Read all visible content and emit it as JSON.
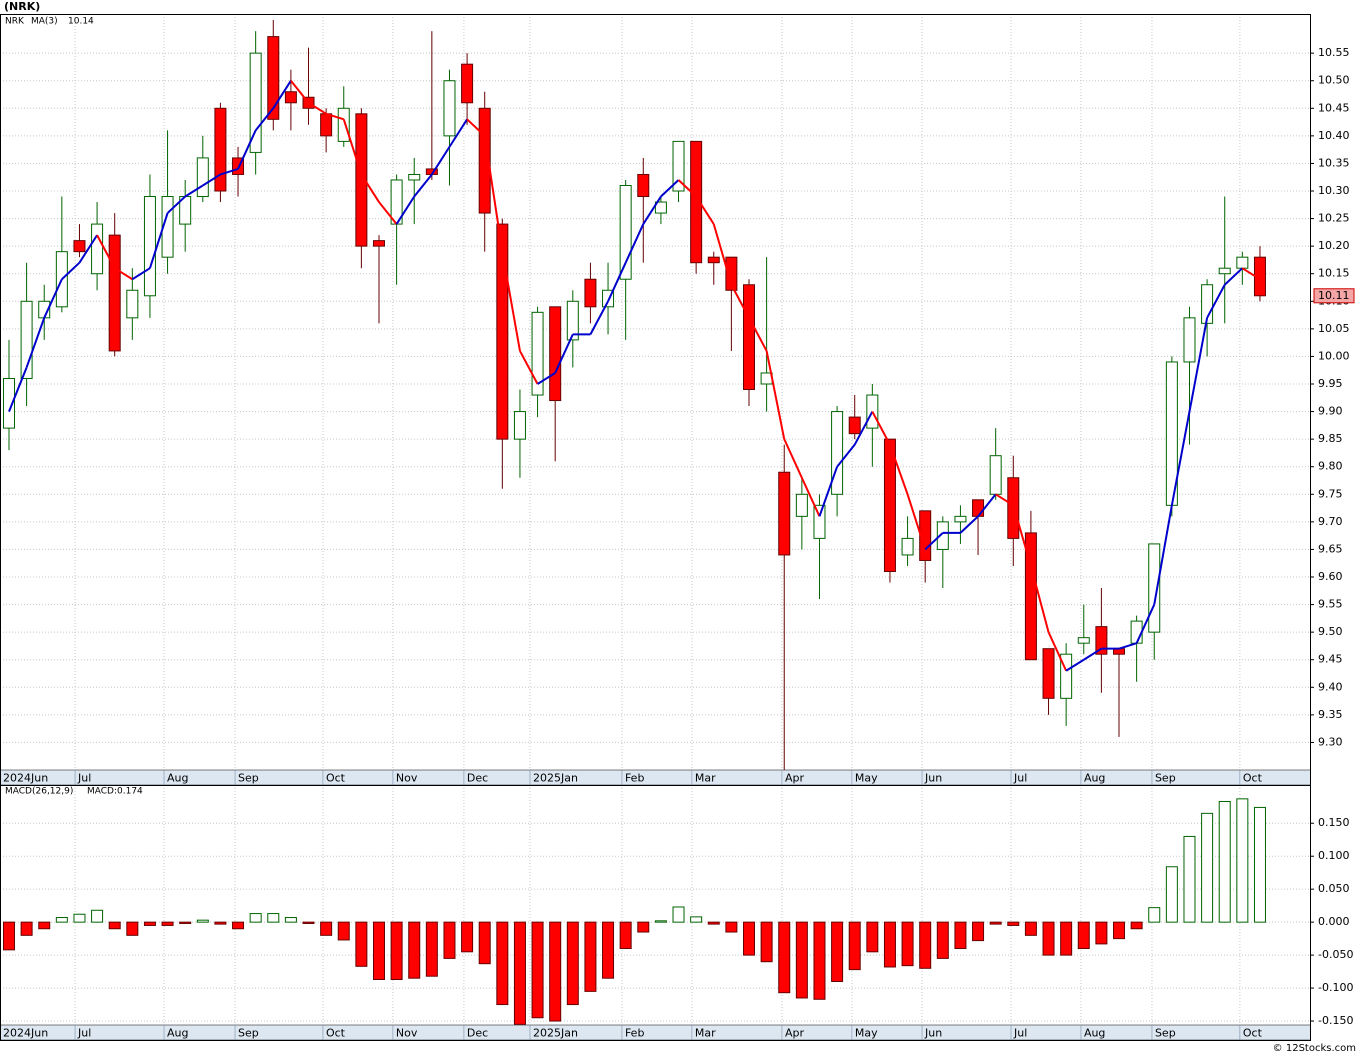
{
  "footer": "© 12Stocks.com",
  "chart_data": [
    {
      "type": "candlestick",
      "title": "(NRK)",
      "name": "NRK",
      "name_color": "#006400",
      "open": [
        9.87,
        9.96,
        10.07,
        10.09,
        10.21,
        10.15,
        10.22,
        10.07,
        10.11,
        10.18,
        10.24,
        10.29,
        10.45,
        10.36,
        10.37,
        10.58,
        10.48,
        10.47,
        10.44,
        10.39,
        10.44,
        10.21,
        10.24,
        10.32,
        10.34,
        10.4,
        10.53,
        10.45,
        10.24,
        9.85,
        9.93,
        10.09,
        10.03,
        10.14,
        10.09,
        10.14,
        10.33,
        10.26,
        10.3,
        10.39,
        10.18,
        10.18,
        10.13,
        9.95,
        9.79,
        9.71,
        9.67,
        9.75,
        9.89,
        9.87,
        9.85,
        9.64,
        9.72,
        9.65,
        9.7,
        9.74,
        9.75,
        9.78,
        9.68,
        9.47,
        9.38,
        9.48,
        9.51,
        9.47,
        9.48,
        9.5,
        9.73,
        9.99,
        10.06,
        10.15,
        10.16,
        10.18
      ],
      "high": [
        10.03,
        10.17,
        10.13,
        10.29,
        10.24,
        10.28,
        10.26,
        10.16,
        10.33,
        10.41,
        10.32,
        10.4,
        10.46,
        10.38,
        10.59,
        10.61,
        10.52,
        10.56,
        10.45,
        10.49,
        10.45,
        10.22,
        10.33,
        10.36,
        10.59,
        10.52,
        10.55,
        10.48,
        10.25,
        9.94,
        10.09,
        10.09,
        10.12,
        10.17,
        10.17,
        10.32,
        10.36,
        10.29,
        10.39,
        10.39,
        10.19,
        10.18,
        10.14,
        10.18,
        9.84,
        9.78,
        9.75,
        9.91,
        9.93,
        9.95,
        9.85,
        9.71,
        9.72,
        9.71,
        9.73,
        9.74,
        9.87,
        9.82,
        9.72,
        9.47,
        9.48,
        9.55,
        9.58,
        9.47,
        9.53,
        9.66,
        10.0,
        10.09,
        10.14,
        10.29,
        10.19,
        10.2
      ],
      "low": [
        9.83,
        9.91,
        10.03,
        10.08,
        10.18,
        10.12,
        10.0,
        10.03,
        10.07,
        10.15,
        10.19,
        10.28,
        10.28,
        10.29,
        10.33,
        10.41,
        10.41,
        10.42,
        10.37,
        10.38,
        10.16,
        10.06,
        10.13,
        10.24,
        10.32,
        10.31,
        10.42,
        10.19,
        9.76,
        9.78,
        9.89,
        9.81,
        9.98,
        10.06,
        10.04,
        10.03,
        10.17,
        10.24,
        10.28,
        10.15,
        10.13,
        10.01,
        9.91,
        9.9,
        9.25,
        9.65,
        9.56,
        9.71,
        9.85,
        9.8,
        9.59,
        9.62,
        9.59,
        9.58,
        9.66,
        9.64,
        9.74,
        9.62,
        9.45,
        9.35,
        9.33,
        9.46,
        9.39,
        9.31,
        9.41,
        9.45,
        9.71,
        9.84,
        10.0,
        10.06,
        10.13,
        10.1
      ],
      "close": [
        9.96,
        10.1,
        10.1,
        10.19,
        10.19,
        10.24,
        10.01,
        10.12,
        10.29,
        10.29,
        10.29,
        10.36,
        10.3,
        10.33,
        10.55,
        10.43,
        10.46,
        10.45,
        10.4,
        10.45,
        10.2,
        10.2,
        10.32,
        10.33,
        10.33,
        10.5,
        10.46,
        10.26,
        9.85,
        9.9,
        10.08,
        9.92,
        10.1,
        10.09,
        10.12,
        10.31,
        10.29,
        10.28,
        10.39,
        10.17,
        10.17,
        10.12,
        9.94,
        9.97,
        9.64,
        9.75,
        9.73,
        9.9,
        9.86,
        9.93,
        9.61,
        9.67,
        9.63,
        9.7,
        9.71,
        9.71,
        9.82,
        9.67,
        9.45,
        9.38,
        9.46,
        9.49,
        9.46,
        9.46,
        9.52,
        9.66,
        9.99,
        10.07,
        10.13,
        10.16,
        10.18,
        10.11
      ],
      "up_color": "#006400",
      "down_color": "#ff0000",
      "ma": {
        "name": "MA(3)",
        "color": "#0000cc",
        "up_color": "#0000cc",
        "down_color": "#ff0000",
        "values": [
          9.9,
          9.98,
          10.07,
          10.14,
          10.17,
          10.22,
          10.16,
          10.14,
          10.16,
          10.26,
          10.29,
          10.31,
          10.33,
          10.34,
          10.41,
          10.45,
          10.5,
          10.46,
          10.44,
          10.43,
          10.33,
          10.28,
          10.24,
          10.29,
          10.33,
          10.38,
          10.43,
          10.4,
          10.19,
          10.01,
          9.95,
          9.97,
          10.04,
          10.04,
          10.1,
          10.17,
          10.24,
          10.29,
          10.32,
          10.29,
          10.24,
          10.13,
          10.07,
          10.01,
          9.85,
          9.78,
          9.71,
          9.8,
          9.84,
          9.9,
          9.84,
          9.75,
          9.65,
          9.68,
          9.68,
          9.71,
          9.75,
          9.73,
          9.62,
          9.5,
          9.43,
          9.45,
          9.47,
          9.47,
          9.48,
          9.55,
          9.73,
          9.9,
          10.07,
          10.13,
          10.16,
          10.14
        ]
      },
      "xlim": [
        -0.51,
        73.84
      ],
      "xticks": [
        {
          "value": -0.51,
          "label": "2024Jun"
        },
        {
          "value": 3.75,
          "label": "Jul"
        },
        {
          "value": 8.8,
          "label": "Aug"
        },
        {
          "value": 12.83,
          "label": "Sep"
        },
        {
          "value": 17.82,
          "label": "Oct"
        },
        {
          "value": 21.79,
          "label": "Nov"
        },
        {
          "value": 25.82,
          "label": "Dec"
        },
        {
          "value": 29.57,
          "label": "2025Jan"
        },
        {
          "value": 34.79,
          "label": "Feb"
        },
        {
          "value": 38.76,
          "label": "Mar"
        },
        {
          "value": 43.87,
          "label": "Apr"
        },
        {
          "value": 47.84,
          "label": "May"
        },
        {
          "value": 51.82,
          "label": "Jun"
        },
        {
          "value": 56.87,
          "label": "Jul"
        },
        {
          "value": 60.84,
          "label": "Aug"
        },
        {
          "value": 64.87,
          "label": "Sep"
        },
        {
          "value": 69.86,
          "label": "Oct"
        }
      ],
      "ylim": [
        9.25,
        10.621
      ],
      "yticks": [
        {
          "value": 9.3,
          "label": "9.30"
        },
        9.35,
        {
          "value": 9.4,
          "label": "9.40"
        },
        9.45,
        {
          "value": 9.5,
          "label": "9.50"
        },
        9.55,
        {
          "value": 9.6,
          "label": "9.60"
        },
        9.65,
        {
          "value": 9.7,
          "label": "9.70"
        },
        9.75,
        {
          "value": 9.8,
          "label": "9.80"
        },
        9.85,
        {
          "value": 9.9,
          "label": "9.90"
        },
        9.95,
        {
          "value": 10,
          "label": "10.00"
        },
        10.05,
        {
          "value": 10.1,
          "label": "10.10"
        },
        10.15,
        {
          "value": 10.2,
          "label": "10.20"
        },
        10.25,
        {
          "value": 10.3,
          "label": "10.30"
        },
        10.35,
        {
          "value": 10.4,
          "label": "10.40"
        },
        10.45,
        {
          "value": 10.5,
          "label": "10.50"
        },
        10.55
      ],
      "grid": true
    },
    {
      "type": "bar",
      "title": "MACD(26,12,9)",
      "value_label": "MACD:0.174",
      "value_label_color": "#0000cc",
      "values": [
        -0.042,
        -0.02,
        -0.01,
        0.007,
        0.012,
        0.018,
        -0.01,
        -0.02,
        -0.005,
        -0.005,
        -0.002,
        0.003,
        -0.003,
        -0.01,
        0.013,
        0.013,
        0.007,
        -0.002,
        -0.02,
        -0.027,
        -0.067,
        -0.087,
        -0.087,
        -0.085,
        -0.082,
        -0.055,
        -0.045,
        -0.063,
        -0.125,
        -0.155,
        -0.145,
        -0.15,
        -0.125,
        -0.105,
        -0.085,
        -0.04,
        -0.015,
        0.002,
        0.023,
        0.008,
        -0.003,
        -0.015,
        -0.05,
        -0.06,
        -0.107,
        -0.115,
        -0.117,
        -0.09,
        -0.072,
        -0.045,
        -0.068,
        -0.066,
        -0.07,
        -0.055,
        -0.04,
        -0.028,
        -0.003,
        -0.005,
        -0.02,
        -0.05,
        -0.05,
        -0.04,
        -0.033,
        -0.025,
        -0.01,
        0.022,
        0.084,
        0.13,
        0.165,
        0.183,
        0.187,
        0.174
      ],
      "up_color": "#006400",
      "down_color": "#ff0000",
      "xlim": [
        -0.51,
        73.84
      ],
      "xticks": [
        {
          "value": -0.51,
          "label": "2024Jun"
        },
        {
          "value": 3.75,
          "label": "Jul"
        },
        {
          "value": 8.8,
          "label": "Aug"
        },
        {
          "value": 12.83,
          "label": "Sep"
        },
        {
          "value": 17.82,
          "label": "Oct"
        },
        {
          "value": 21.79,
          "label": "Nov"
        },
        {
          "value": 25.82,
          "label": "Dec"
        },
        {
          "value": 29.57,
          "label": "2025Jan"
        },
        {
          "value": 34.79,
          "label": "Feb"
        },
        {
          "value": 38.76,
          "label": "Mar"
        },
        {
          "value": 43.87,
          "label": "Apr"
        },
        {
          "value": 47.84,
          "label": "May"
        },
        {
          "value": 51.82,
          "label": "Jun"
        },
        {
          "value": 56.87,
          "label": "Jul"
        },
        {
          "value": 60.84,
          "label": "Aug"
        },
        {
          "value": 64.87,
          "label": "Sep"
        },
        {
          "value": 69.86,
          "label": "Oct"
        }
      ],
      "ylim": [
        -0.156,
        0.208
      ],
      "yticks": [
        {
          "value": -0.15,
          "label": "-0.150"
        },
        {
          "value": -0.1,
          "label": "-0.100"
        },
        {
          "value": -0.05,
          "label": "-0.050"
        },
        {
          "value": 0,
          "label": "0.000"
        },
        {
          "value": 0.05,
          "label": "0.050"
        },
        {
          "value": 0.1,
          "label": "0.100"
        },
        {
          "value": 0.15,
          "label": "0.150"
        }
      ],
      "grid": true
    }
  ]
}
